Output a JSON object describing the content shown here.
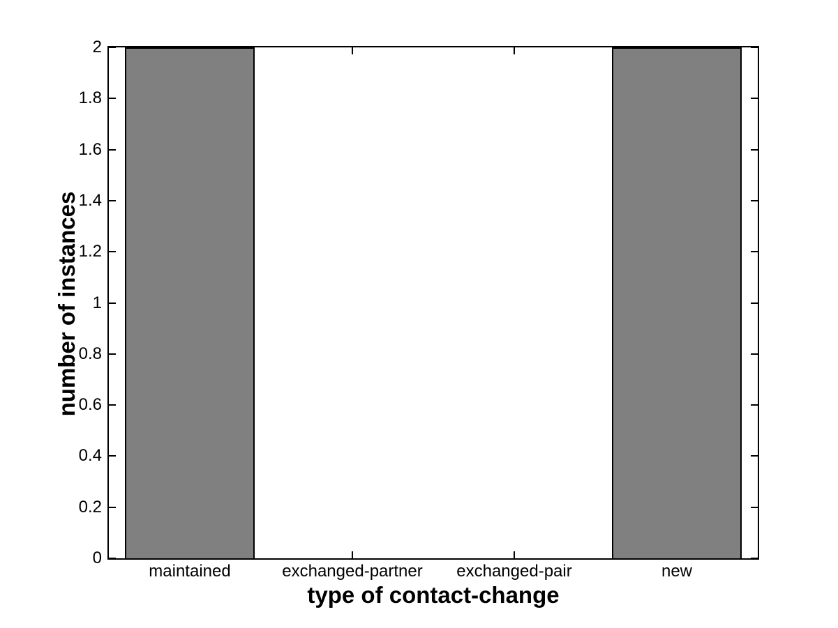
{
  "chart_data": {
    "type": "bar",
    "categories": [
      "maintained",
      "exchanged-partner",
      "exchanged-pair",
      "new"
    ],
    "values": [
      2,
      0,
      0,
      2
    ],
    "xlabel": "type of contact-change",
    "ylabel": "number of instances",
    "ylim": [
      0,
      2
    ],
    "ytick_step": 0.2,
    "ytick_labels": [
      "0",
      "0.2",
      "0.4",
      "0.6",
      "0.8",
      "1",
      "1.2",
      "1.4",
      "1.6",
      "1.8",
      "2"
    ],
    "bar_width_fraction": 0.8,
    "grid": false,
    "legend_position": "none",
    "axis_box": true,
    "colors": {
      "bar_fill": "#808080",
      "bar_edge": "#000000",
      "axis": "#000000",
      "text": "#000000",
      "background": "#ffffff"
    }
  }
}
